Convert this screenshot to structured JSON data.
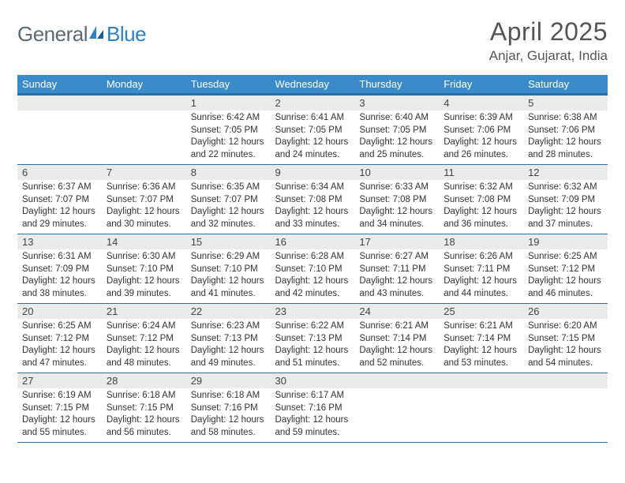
{
  "brand": {
    "general": "General",
    "blue": "Blue"
  },
  "title": "April 2025",
  "location": "Anjar, Gujarat, India",
  "colors": {
    "header_bg": "#3a8bc9",
    "header_border": "#2c6ea3",
    "daynum_bg": "#ebebeb",
    "logo_gray": "#5a6a72",
    "logo_blue": "#2e82c4"
  },
  "weekdays": [
    "Sunday",
    "Monday",
    "Tuesday",
    "Wednesday",
    "Thursday",
    "Friday",
    "Saturday"
  ],
  "weeks": [
    [
      null,
      null,
      {
        "n": "1",
        "sr": "6:42 AM",
        "ss": "7:05 PM",
        "dl": "12 hours and 22 minutes."
      },
      {
        "n": "2",
        "sr": "6:41 AM",
        "ss": "7:05 PM",
        "dl": "12 hours and 24 minutes."
      },
      {
        "n": "3",
        "sr": "6:40 AM",
        "ss": "7:05 PM",
        "dl": "12 hours and 25 minutes."
      },
      {
        "n": "4",
        "sr": "6:39 AM",
        "ss": "7:06 PM",
        "dl": "12 hours and 26 minutes."
      },
      {
        "n": "5",
        "sr": "6:38 AM",
        "ss": "7:06 PM",
        "dl": "12 hours and 28 minutes."
      }
    ],
    [
      {
        "n": "6",
        "sr": "6:37 AM",
        "ss": "7:07 PM",
        "dl": "12 hours and 29 minutes."
      },
      {
        "n": "7",
        "sr": "6:36 AM",
        "ss": "7:07 PM",
        "dl": "12 hours and 30 minutes."
      },
      {
        "n": "8",
        "sr": "6:35 AM",
        "ss": "7:07 PM",
        "dl": "12 hours and 32 minutes."
      },
      {
        "n": "9",
        "sr": "6:34 AM",
        "ss": "7:08 PM",
        "dl": "12 hours and 33 minutes."
      },
      {
        "n": "10",
        "sr": "6:33 AM",
        "ss": "7:08 PM",
        "dl": "12 hours and 34 minutes."
      },
      {
        "n": "11",
        "sr": "6:32 AM",
        "ss": "7:08 PM",
        "dl": "12 hours and 36 minutes."
      },
      {
        "n": "12",
        "sr": "6:32 AM",
        "ss": "7:09 PM",
        "dl": "12 hours and 37 minutes."
      }
    ],
    [
      {
        "n": "13",
        "sr": "6:31 AM",
        "ss": "7:09 PM",
        "dl": "12 hours and 38 minutes."
      },
      {
        "n": "14",
        "sr": "6:30 AM",
        "ss": "7:10 PM",
        "dl": "12 hours and 39 minutes."
      },
      {
        "n": "15",
        "sr": "6:29 AM",
        "ss": "7:10 PM",
        "dl": "12 hours and 41 minutes."
      },
      {
        "n": "16",
        "sr": "6:28 AM",
        "ss": "7:10 PM",
        "dl": "12 hours and 42 minutes."
      },
      {
        "n": "17",
        "sr": "6:27 AM",
        "ss": "7:11 PM",
        "dl": "12 hours and 43 minutes."
      },
      {
        "n": "18",
        "sr": "6:26 AM",
        "ss": "7:11 PM",
        "dl": "12 hours and 44 minutes."
      },
      {
        "n": "19",
        "sr": "6:25 AM",
        "ss": "7:12 PM",
        "dl": "12 hours and 46 minutes."
      }
    ],
    [
      {
        "n": "20",
        "sr": "6:25 AM",
        "ss": "7:12 PM",
        "dl": "12 hours and 47 minutes."
      },
      {
        "n": "21",
        "sr": "6:24 AM",
        "ss": "7:12 PM",
        "dl": "12 hours and 48 minutes."
      },
      {
        "n": "22",
        "sr": "6:23 AM",
        "ss": "7:13 PM",
        "dl": "12 hours and 49 minutes."
      },
      {
        "n": "23",
        "sr": "6:22 AM",
        "ss": "7:13 PM",
        "dl": "12 hours and 51 minutes."
      },
      {
        "n": "24",
        "sr": "6:21 AM",
        "ss": "7:14 PM",
        "dl": "12 hours and 52 minutes."
      },
      {
        "n": "25",
        "sr": "6:21 AM",
        "ss": "7:14 PM",
        "dl": "12 hours and 53 minutes."
      },
      {
        "n": "26",
        "sr": "6:20 AM",
        "ss": "7:15 PM",
        "dl": "12 hours and 54 minutes."
      }
    ],
    [
      {
        "n": "27",
        "sr": "6:19 AM",
        "ss": "7:15 PM",
        "dl": "12 hours and 55 minutes."
      },
      {
        "n": "28",
        "sr": "6:18 AM",
        "ss": "7:15 PM",
        "dl": "12 hours and 56 minutes."
      },
      {
        "n": "29",
        "sr": "6:18 AM",
        "ss": "7:16 PM",
        "dl": "12 hours and 58 minutes."
      },
      {
        "n": "30",
        "sr": "6:17 AM",
        "ss": "7:16 PM",
        "dl": "12 hours and 59 minutes."
      },
      null,
      null,
      null
    ]
  ],
  "labels": {
    "sunrise": "Sunrise: ",
    "sunset": "Sunset: ",
    "daylight": "Daylight: "
  }
}
